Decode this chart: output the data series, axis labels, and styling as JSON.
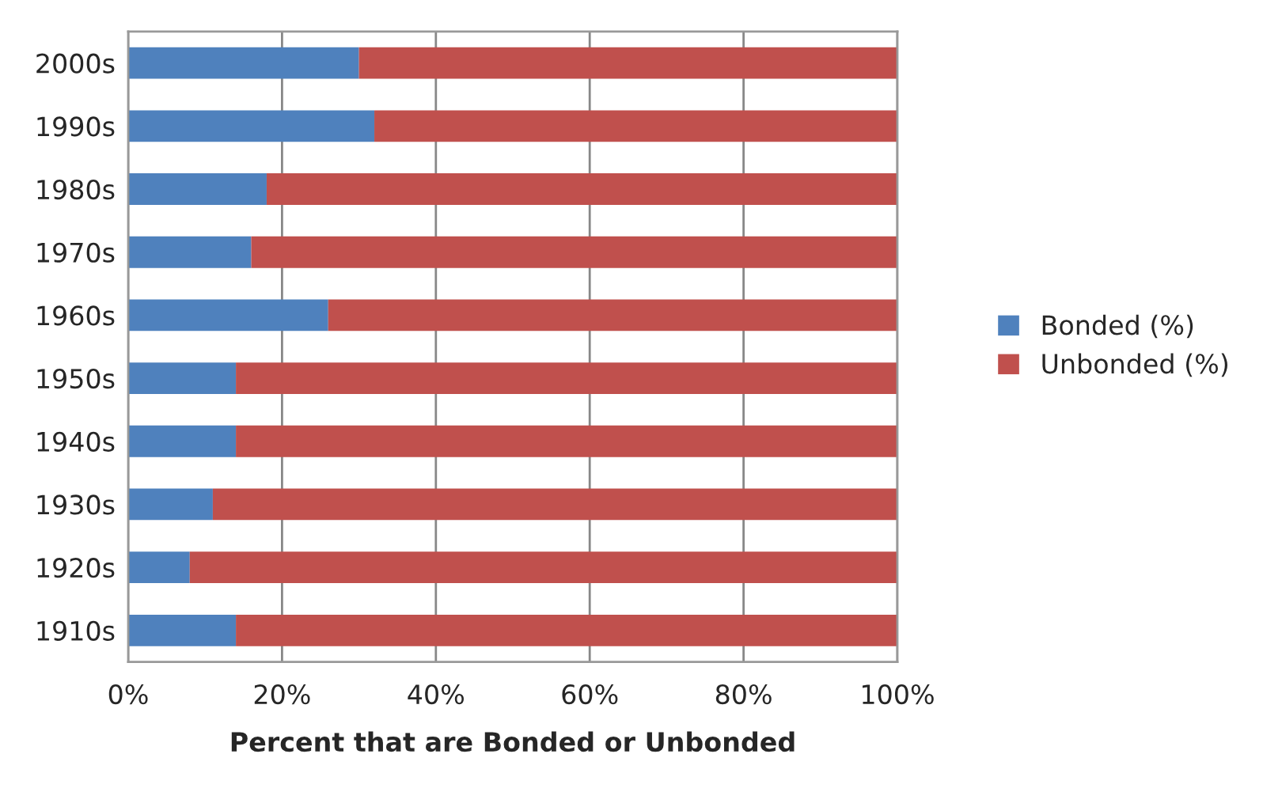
{
  "chart_data": {
    "type": "bar",
    "orientation": "horizontal",
    "stacked": true,
    "xlabel": "Percent that are Bonded or Unbonded",
    "categories": [
      "2000s",
      "1990s",
      "1980s",
      "1970s",
      "1960s",
      "1950s",
      "1940s",
      "1930s",
      "1920s",
      "1910s"
    ],
    "series": [
      {
        "name": "Bonded (%)",
        "color": "#4f81bd",
        "values": [
          30,
          32,
          18,
          16,
          26,
          14,
          14,
          11,
          8,
          14
        ]
      },
      {
        "name": "Unbonded (%)",
        "color": "#c0504d",
        "values": [
          70,
          68,
          82,
          84,
          74,
          86,
          86,
          89,
          92,
          86
        ]
      }
    ],
    "xlim": [
      0,
      100
    ],
    "xticks": [
      {
        "value": 0,
        "label": "0%"
      },
      {
        "value": 20,
        "label": "20%"
      },
      {
        "value": 40,
        "label": "40%"
      },
      {
        "value": 60,
        "label": "60%"
      },
      {
        "value": 80,
        "label": "80%"
      },
      {
        "value": 100,
        "label": "100%"
      }
    ],
    "grid": "x",
    "legend": "right"
  }
}
